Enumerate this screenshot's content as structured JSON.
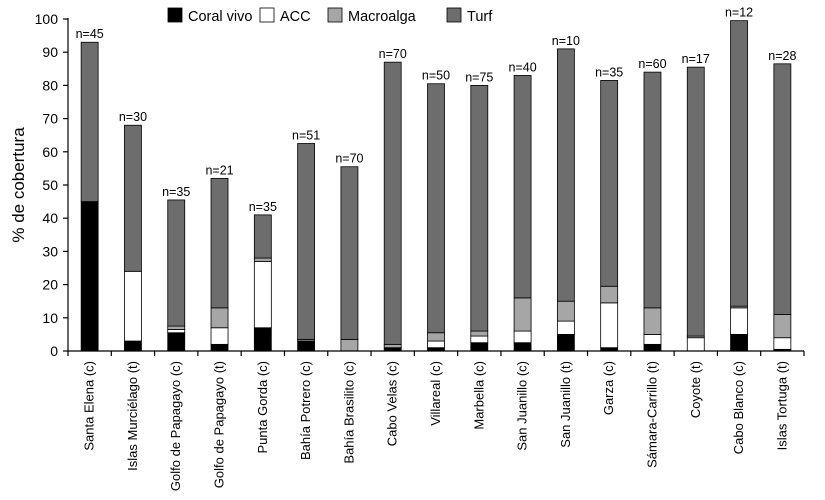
{
  "chart_data": {
    "type": "bar",
    "stacked": true,
    "ylabel": "% de cobertura",
    "xlabel": "",
    "ylim": [
      0,
      100
    ],
    "yticks": [
      0,
      10,
      20,
      30,
      40,
      50,
      60,
      70,
      80,
      90,
      100
    ],
    "legend_position": "top",
    "categories": [
      "Santa Elena (c)",
      "Islas Murciélago (t)",
      "Golfo de Papagayo (c)",
      "Golfo de Papagayo (t)",
      "Punta Gorda (c)",
      "Bahía Potrero (c)",
      "Bahía Brasilito (c)",
      "Cabo Velas (c)",
      "Villareal (c)",
      "Marbella (c)",
      "San Juanillo (c)",
      "San Juanillo (t)",
      "Garza (c)",
      "Sámara-Carrillo (t)",
      "Coyote (t)",
      "Cabo Blanco (c)",
      "Islas Tortuga (t)"
    ],
    "sample_sizes": [
      "n=45",
      "n=30",
      "n=35",
      "n=21",
      "n=35",
      "n=51",
      "n=70",
      "n=70",
      "n=50",
      "n=75",
      "n=40",
      "n=10",
      "n=35",
      "n=60",
      "n=17",
      "n=12",
      "n=28"
    ],
    "series": [
      {
        "name": "Coral vivo",
        "color": "#000000",
        "values": [
          45,
          3,
          5.5,
          2,
          7,
          3,
          0,
          1,
          1,
          2.5,
          2.5,
          5,
          1,
          2,
          0,
          5,
          0.5
        ]
      },
      {
        "name": "ACC",
        "color": "#ffffff",
        "values": [
          0,
          21,
          1,
          5,
          20,
          0,
          0,
          0,
          2,
          2,
          3.5,
          4,
          13.5,
          3,
          4,
          8,
          3.5
        ]
      },
      {
        "name": "Macroalga",
        "color": "#a6a6a6",
        "values": [
          0,
          0,
          1,
          6,
          1,
          0.5,
          3.5,
          1,
          2.5,
          1.5,
          10,
          6,
          5,
          8,
          0.5,
          0.5,
          7
        ]
      },
      {
        "name": "Turf",
        "color": "#6d6d6d",
        "values": [
          48,
          44,
          38,
          39,
          13,
          59,
          52,
          85,
          75,
          74,
          67,
          76,
          62,
          71,
          81,
          86,
          75.5
        ]
      }
    ]
  }
}
